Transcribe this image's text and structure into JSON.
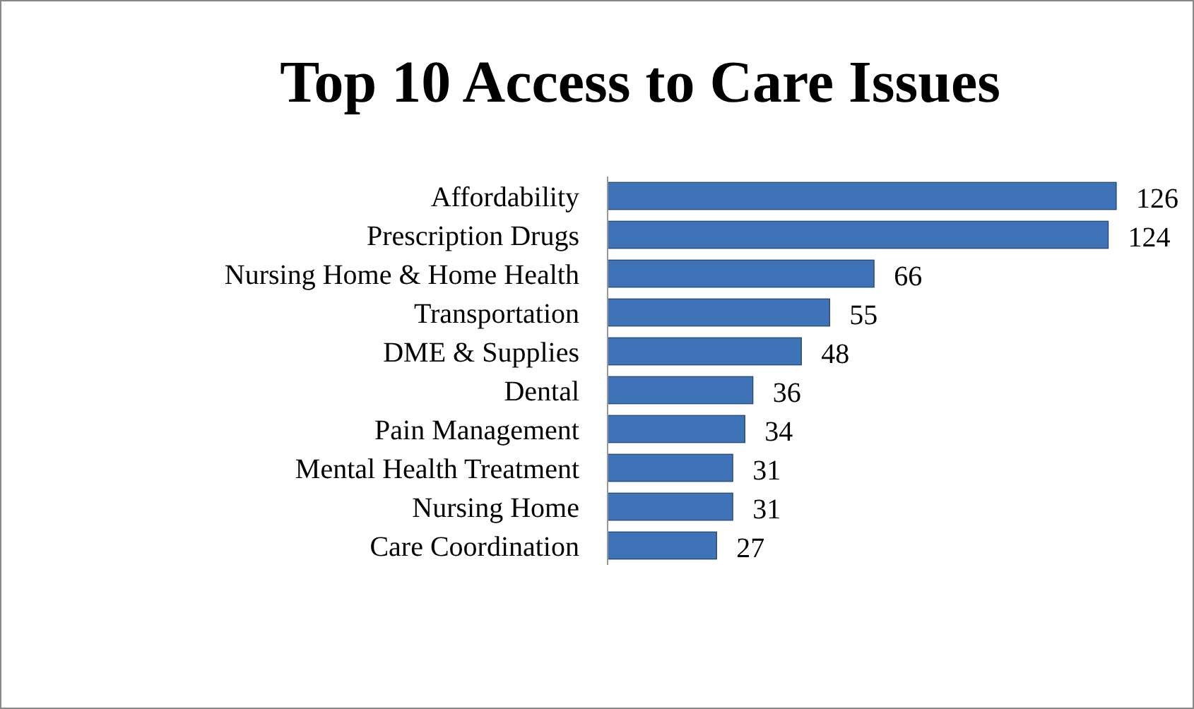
{
  "chart_data": {
    "type": "bar",
    "orientation": "horizontal",
    "title": "Top 10 Access to Care Issues",
    "categories": [
      "Affordability",
      "Prescription Drugs",
      "Nursing Home & Home Health",
      "Transportation",
      "DME & Supplies",
      "Dental",
      "Pain Management",
      "Mental Health Treatment",
      "Nursing Home",
      "Care Coordination"
    ],
    "values": [
      126,
      124,
      66,
      55,
      48,
      36,
      34,
      31,
      31,
      27
    ],
    "color": "#3f73b8",
    "data_labels": true
  }
}
